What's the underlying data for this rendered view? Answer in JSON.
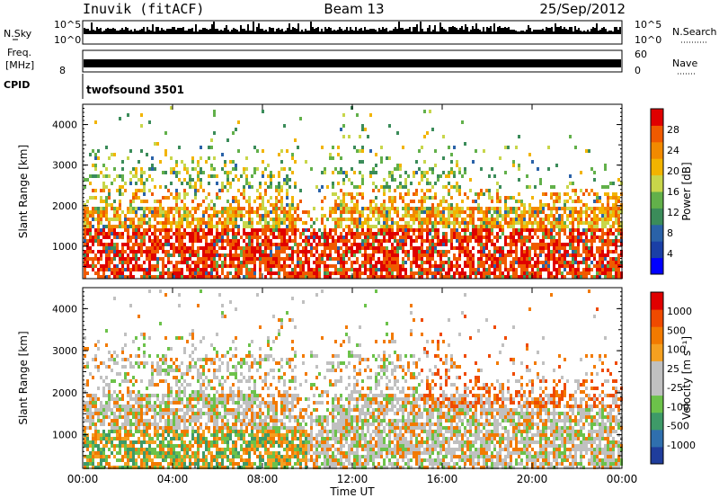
{
  "header": {
    "station": "Inuvik (fitACF)",
    "beam": "Beam 13",
    "date": "25/Sep/2012"
  },
  "strip_panels": {
    "nsky": {
      "label": "N.Sky",
      "ticks": [
        "10^5",
        "10^0"
      ],
      "right_ticks": [
        "10^5",
        "10^0"
      ],
      "right_label": "N.Search"
    },
    "freq": {
      "label": "Freq.",
      "unit": "[MHz]",
      "ticks": [
        "8"
      ],
      "right_ticks": [
        "60",
        "0"
      ],
      "right_label": "Nave"
    },
    "cpid": {
      "label": "CPID",
      "program": "twofsound 3501"
    }
  },
  "chart_data": [
    {
      "type": "heatmap",
      "name": "power",
      "ylabel": "Slant Range [km]",
      "ylim": [
        200,
        4500
      ],
      "yticks": [
        1000,
        2000,
        3000,
        4000
      ],
      "xlim": [
        0,
        24
      ],
      "colorbar": {
        "label": "Power [dB]",
        "ticks": [
          "28",
          "24",
          "20",
          "16",
          "12",
          "8",
          "4"
        ],
        "colors": [
          "#0000ff",
          "#1a3fa6",
          "#2a62a8",
          "#3b8c5a",
          "#62b04a",
          "#c8d64a",
          "#f2b400",
          "#f28a00",
          "#f05a00",
          "#e00000"
        ]
      }
    },
    {
      "type": "heatmap",
      "name": "velocity",
      "ylabel": "Slant Range [km]",
      "ylim": [
        200,
        4500
      ],
      "yticks": [
        1000,
        2000,
        3000,
        4000
      ],
      "xlim": [
        0,
        24
      ],
      "colorbar": {
        "label": "Velocity [m s⁻¹]",
        "ticks": [
          "1000",
          "500",
          "100",
          "25",
          "-25",
          "-100",
          "-500",
          "-1000"
        ],
        "colors": [
          "#1f3d9c",
          "#2f6fae",
          "#3e9a68",
          "#6cc24a",
          "#c0c0c0",
          "#c0c0c0",
          "#f5a020",
          "#f27a00",
          "#ef4a00",
          "#e00000"
        ]
      }
    }
  ],
  "time_axis": {
    "label": "Time UT",
    "ticks": [
      "00:00",
      "04:00",
      "08:00",
      "12:00",
      "16:00",
      "20:00",
      "00:00"
    ]
  }
}
